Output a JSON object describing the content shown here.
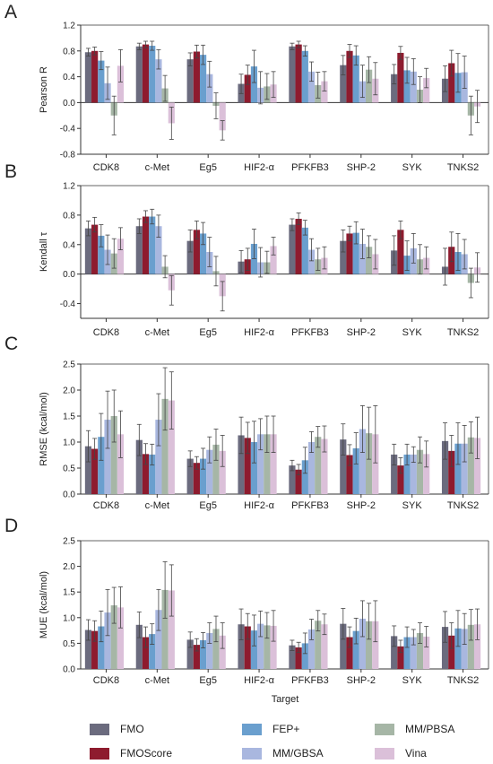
{
  "panel_letters": [
    "A",
    "B",
    "C",
    "D"
  ],
  "x_axis_title": "Target",
  "legend": [
    {
      "name": "FMO",
      "color": "#6b6b7e"
    },
    {
      "name": "FMOScore",
      "color": "#8e1b2e"
    },
    {
      "name": "FEP+",
      "color": "#6a9fce"
    },
    {
      "name": "MM/GBSA",
      "color": "#a9b7df"
    },
    {
      "name": "MM/PBSA",
      "color": "#a6b6a6"
    },
    {
      "name": "Vina",
      "color": "#dbc0d9"
    }
  ],
  "chart_data": [
    {
      "type": "bar",
      "panel": "A",
      "ylabel": "Pearson R",
      "categories": [
        "CDK8",
        "c-Met",
        "Eg5",
        "HIF2-α",
        "PFKFB3",
        "SHP-2",
        "SYK",
        "TNKS2"
      ],
      "ylim": [
        -0.8,
        1.2
      ],
      "yticks": [
        -0.8,
        -0.4,
        0.0,
        0.4,
        0.8,
        1.2
      ],
      "series": [
        {
          "name": "FMO",
          "values": [
            0.78,
            0.87,
            0.67,
            0.29,
            0.87,
            0.58,
            0.44,
            0.37
          ],
          "errors": [
            0.06,
            0.05,
            0.1,
            0.15,
            0.05,
            0.15,
            0.15,
            0.2
          ]
        },
        {
          "name": "FMOScore",
          "values": [
            0.8,
            0.9,
            0.79,
            0.43,
            0.9,
            0.8,
            0.77,
            0.61
          ],
          "errors": [
            0.06,
            0.05,
            0.1,
            0.15,
            0.05,
            0.1,
            0.1,
            0.2
          ]
        },
        {
          "name": "FEP+",
          "values": [
            0.65,
            0.88,
            0.74,
            0.56,
            0.8,
            0.73,
            0.5,
            0.46
          ],
          "errors": [
            0.14,
            0.07,
            0.15,
            0.25,
            0.08,
            0.15,
            0.2,
            0.3
          ]
        },
        {
          "name": "MM/GBSA",
          "values": [
            0.3,
            0.67,
            0.44,
            0.23,
            0.48,
            0.33,
            0.48,
            0.47
          ],
          "errors": [
            0.25,
            0.15,
            0.2,
            0.25,
            0.15,
            0.25,
            0.2,
            0.25
          ]
        },
        {
          "name": "MM/PBSA",
          "values": [
            -0.2,
            0.22,
            -0.05,
            0.25,
            0.27,
            0.51,
            0.2,
            -0.2
          ],
          "errors": [
            0.3,
            0.2,
            0.2,
            0.2,
            0.2,
            0.2,
            0.2,
            0.3
          ]
        },
        {
          "name": "Vina",
          "values": [
            0.57,
            -0.32,
            -0.43,
            0.28,
            0.33,
            0.37,
            0.38,
            -0.06
          ],
          "errors": [
            0.25,
            0.25,
            0.15,
            0.2,
            0.15,
            0.25,
            0.15,
            0.25
          ]
        }
      ]
    },
    {
      "type": "bar",
      "panel": "B",
      "ylabel": "Kendall τ",
      "categories": [
        "CDK8",
        "c-Met",
        "Eg5",
        "HIF2-α",
        "PFKFB3",
        "SHP-2",
        "SYK",
        "TNKS2"
      ],
      "ylim": [
        -0.6,
        1.2
      ],
      "yticks": [
        -0.4,
        0.0,
        0.4,
        0.8,
        1.2
      ],
      "series": [
        {
          "name": "FMO",
          "values": [
            0.62,
            0.65,
            0.45,
            0.17,
            0.67,
            0.45,
            0.32,
            0.1
          ],
          "errors": [
            0.1,
            0.1,
            0.15,
            0.15,
            0.08,
            0.15,
            0.2,
            0.25
          ]
        },
        {
          "name": "FMOScore",
          "values": [
            0.67,
            0.78,
            0.6,
            0.2,
            0.75,
            0.55,
            0.6,
            0.37
          ],
          "errors": [
            0.1,
            0.08,
            0.12,
            0.15,
            0.08,
            0.1,
            0.12,
            0.2
          ]
        },
        {
          "name": "FEP+",
          "values": [
            0.52,
            0.78,
            0.55,
            0.41,
            0.63,
            0.56,
            0.25,
            0.3
          ],
          "errors": [
            0.15,
            0.1,
            0.15,
            0.2,
            0.1,
            0.15,
            0.2,
            0.25
          ]
        },
        {
          "name": "MM/GBSA",
          "values": [
            0.33,
            0.65,
            0.3,
            0.16,
            0.33,
            0.41,
            0.35,
            0.27
          ],
          "errors": [
            0.2,
            0.15,
            0.2,
            0.2,
            0.15,
            0.2,
            0.2,
            0.2
          ]
        },
        {
          "name": "MM/PBSA",
          "values": [
            0.28,
            0.1,
            0.04,
            0.16,
            0.2,
            0.37,
            0.2,
            -0.12
          ],
          "errors": [
            0.2,
            0.15,
            0.2,
            0.15,
            0.15,
            0.15,
            0.2,
            0.2
          ]
        },
        {
          "name": "Vina",
          "values": [
            0.48,
            -0.22,
            -0.3,
            0.38,
            0.22,
            0.27,
            0.22,
            0.09
          ],
          "errors": [
            0.15,
            0.2,
            0.2,
            0.12,
            0.15,
            0.2,
            0.15,
            0.2
          ]
        }
      ]
    },
    {
      "type": "bar",
      "panel": "C",
      "ylabel": "RMSE (kcal/mol)",
      "categories": [
        "CDK8",
        "c-Met",
        "Eg5",
        "HIF2-α",
        "PFKFB3",
        "SHP-2",
        "SYK",
        "TNKS2"
      ],
      "ylim": [
        0.0,
        2.5
      ],
      "yticks": [
        0.0,
        0.5,
        1.0,
        1.5,
        2.0,
        2.5
      ],
      "series": [
        {
          "name": "FMO",
          "values": [
            0.92,
            1.04,
            0.68,
            1.13,
            0.55,
            1.05,
            0.76,
            1.02
          ],
          "errors": [
            0.3,
            0.3,
            0.15,
            0.35,
            0.1,
            0.3,
            0.2,
            0.35
          ]
        },
        {
          "name": "FMOScore",
          "values": [
            0.87,
            0.77,
            0.6,
            1.08,
            0.47,
            0.75,
            0.55,
            0.83
          ],
          "errors": [
            0.2,
            0.2,
            0.12,
            0.3,
            0.1,
            0.2,
            0.15,
            0.3
          ]
        },
        {
          "name": "FEP+",
          "values": [
            1.1,
            0.76,
            0.68,
            1.0,
            0.65,
            0.88,
            0.76,
            0.97
          ],
          "errors": [
            0.45,
            0.2,
            0.2,
            0.4,
            0.25,
            0.3,
            0.2,
            0.4
          ]
        },
        {
          "name": "MM/GBSA",
          "values": [
            1.43,
            1.43,
            0.85,
            1.15,
            1.0,
            1.25,
            0.76,
            0.97
          ],
          "errors": [
            0.55,
            0.5,
            0.25,
            0.3,
            0.2,
            0.45,
            0.15,
            0.35
          ]
        },
        {
          "name": "MM/PBSA",
          "values": [
            1.5,
            1.83,
            0.95,
            1.15,
            1.1,
            1.17,
            0.85,
            1.09
          ],
          "errors": [
            0.5,
            0.6,
            0.3,
            0.35,
            0.2,
            0.5,
            0.25,
            0.3
          ]
        },
        {
          "name": "Vina",
          "values": [
            1.15,
            1.8,
            0.83,
            1.15,
            1.06,
            1.15,
            0.77,
            1.08
          ],
          "errors": [
            0.45,
            0.55,
            0.3,
            0.35,
            0.25,
            0.55,
            0.25,
            0.4
          ]
        }
      ]
    },
    {
      "type": "bar",
      "panel": "D",
      "ylabel": "MUE (kcal/mol)",
      "categories": [
        "CDK8",
        "c-Met",
        "Eg5",
        "HIF2-α",
        "PFKFB3",
        "SHP-2",
        "SYK",
        "TNKS2"
      ],
      "ylim": [
        0.0,
        2.5
      ],
      "yticks": [
        0.0,
        0.5,
        1.0,
        1.5,
        2.0,
        2.5
      ],
      "series": [
        {
          "name": "FMO",
          "values": [
            0.76,
            0.86,
            0.57,
            0.87,
            0.46,
            0.88,
            0.64,
            0.82
          ],
          "errors": [
            0.2,
            0.25,
            0.15,
            0.3,
            0.1,
            0.3,
            0.2,
            0.3
          ]
        },
        {
          "name": "FMOScore",
          "values": [
            0.74,
            0.62,
            0.47,
            0.83,
            0.42,
            0.62,
            0.44,
            0.65
          ],
          "errors": [
            0.2,
            0.2,
            0.12,
            0.25,
            0.1,
            0.2,
            0.12,
            0.25
          ]
        },
        {
          "name": "FEP+",
          "values": [
            0.83,
            0.68,
            0.56,
            0.75,
            0.5,
            0.74,
            0.62,
            0.79
          ],
          "errors": [
            0.3,
            0.2,
            0.15,
            0.3,
            0.2,
            0.25,
            0.2,
            0.35
          ]
        },
        {
          "name": "MM/GBSA",
          "values": [
            1.1,
            1.15,
            0.7,
            0.88,
            0.77,
            0.98,
            0.62,
            0.78
          ],
          "errors": [
            0.45,
            0.4,
            0.2,
            0.25,
            0.2,
            0.35,
            0.15,
            0.3
          ]
        },
        {
          "name": "MM/PBSA",
          "values": [
            1.24,
            1.54,
            0.78,
            0.85,
            0.94,
            0.93,
            0.7,
            0.86
          ],
          "errors": [
            0.35,
            0.55,
            0.25,
            0.25,
            0.2,
            0.35,
            0.2,
            0.3
          ]
        },
        {
          "name": "Vina",
          "values": [
            1.2,
            1.53,
            0.65,
            0.84,
            0.87,
            0.93,
            0.63,
            0.87
          ],
          "errors": [
            0.4,
            0.5,
            0.25,
            0.3,
            0.2,
            0.4,
            0.2,
            0.3
          ]
        }
      ]
    }
  ]
}
